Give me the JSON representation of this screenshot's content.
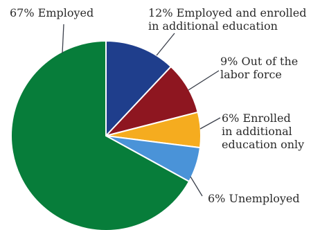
{
  "chart_data": {
    "type": "pie",
    "title": "",
    "legend": "none",
    "slices": [
      {
        "value": 12,
        "label_lines": [
          "12% Employed and enrolled",
          "in additional education"
        ],
        "color": "#1f3e8c"
      },
      {
        "value": 9,
        "label_lines": [
          "9% Out of the",
          "labor force"
        ],
        "color": "#8e1620"
      },
      {
        "value": 6,
        "label_lines": [
          "6% Enrolled",
          "in additional",
          "education only"
        ],
        "color": "#f5ac1f"
      },
      {
        "value": 6,
        "label_lines": [
          "6% Unemployed"
        ],
        "color": "#4a93d8"
      },
      {
        "value": 67,
        "label_lines": [
          "67% Employed"
        ],
        "color": "#077d3a"
      }
    ]
  }
}
